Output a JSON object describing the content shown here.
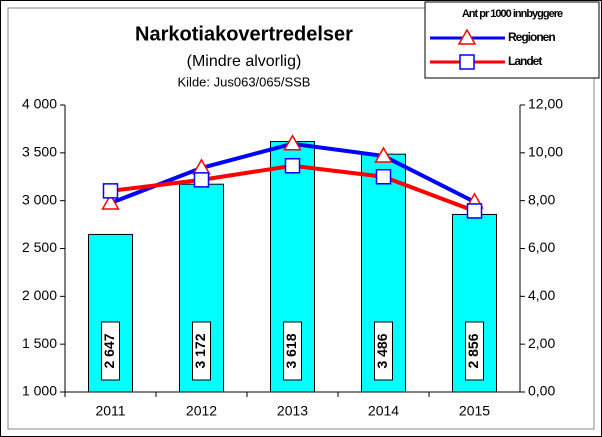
{
  "chart_data": {
    "type": "bar",
    "title": "Narkotiakovertredelser",
    "subtitle": "(Mindre alvorlig)",
    "source": "Kilde: Jus063/065/SSB",
    "legend_title": "Ant pr 1000 innbyggere",
    "categories": [
      "2011",
      "2012",
      "2013",
      "2014",
      "2015"
    ],
    "values": [
      2647,
      3172,
      3618,
      3486,
      2856
    ],
    "value_labels": [
      "2 647",
      "3 172",
      "3 618",
      "3 486",
      "2 856"
    ],
    "color": "#00ffff",
    "ylim": [
      1000,
      4000
    ],
    "yticks": [
      {
        "value": 1000,
        "label": "1 000"
      },
      {
        "value": 1500,
        "label": "1 500"
      },
      {
        "value": 2000,
        "label": "2 000"
      },
      {
        "value": 2500,
        "label": "2 500"
      },
      {
        "value": 3000,
        "label": "3 000"
      },
      {
        "value": 3500,
        "label": "3 500"
      },
      {
        "value": 4000,
        "label": "4 000"
      }
    ],
    "y2lim": [
      0,
      12
    ],
    "y2ticks": [
      {
        "value": 0,
        "label": "0,00"
      },
      {
        "value": 2,
        "label": "2,00"
      },
      {
        "value": 4,
        "label": "4,00"
      },
      {
        "value": 6,
        "label": "6,00"
      },
      {
        "value": 8,
        "label": "8,00"
      },
      {
        "value": 10,
        "label": "10,00"
      },
      {
        "value": 12,
        "label": "12,00"
      }
    ],
    "series": [
      {
        "name": "Regionen",
        "color": "#0000ff",
        "marker": "triangle",
        "marker_color": "#ff0000",
        "axis": "y2",
        "values": [
          7.9,
          9.37,
          10.38,
          9.87,
          7.95
        ]
      },
      {
        "name": "Landet",
        "color": "#ff0000",
        "marker": "square",
        "marker_color": "#0000ff",
        "axis": "y2",
        "values": [
          8.41,
          8.87,
          9.46,
          9.0,
          7.57
        ]
      }
    ]
  }
}
